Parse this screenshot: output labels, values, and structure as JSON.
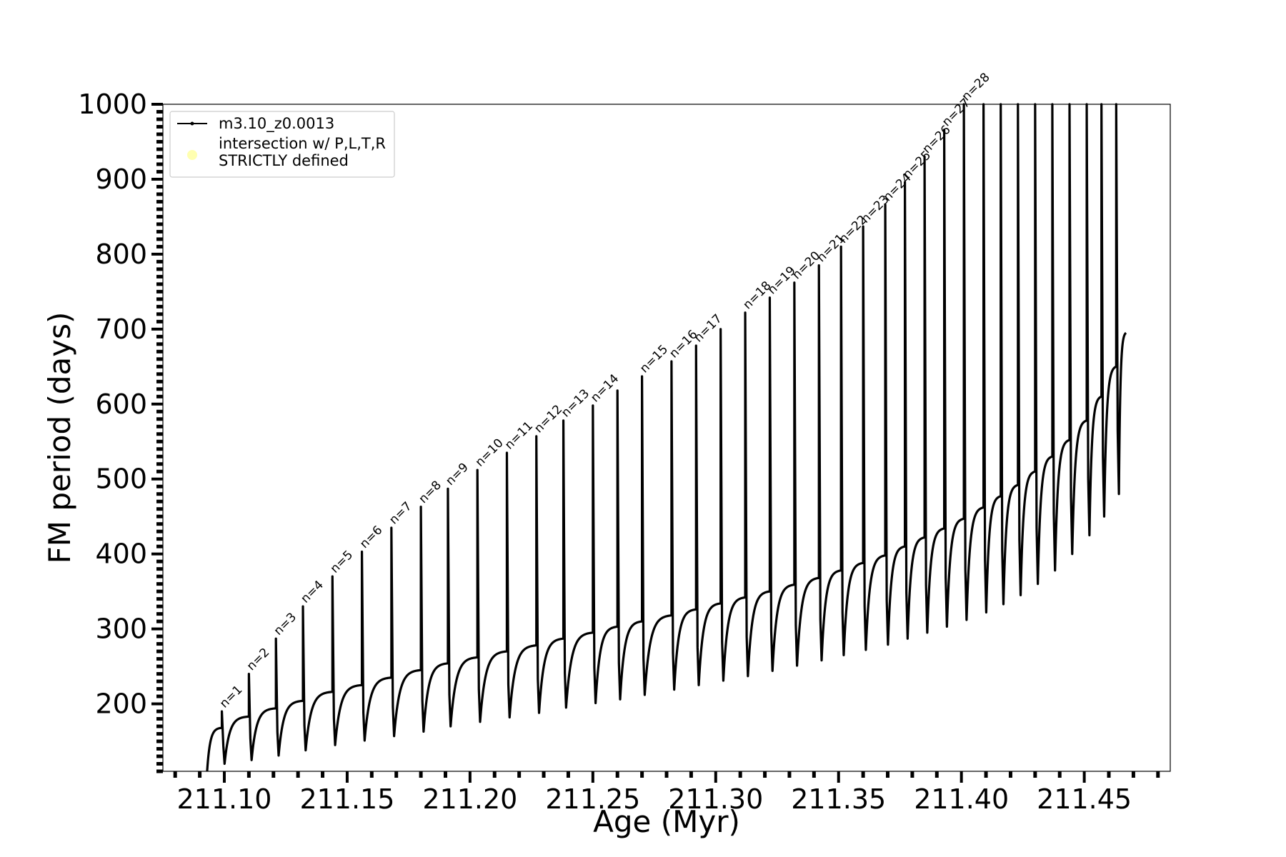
{
  "chart_data": {
    "type": "line",
    "title": "",
    "xlabel": "Age (Myr)",
    "ylabel": "FM period (days)",
    "xlim": [
      211.075,
      211.485
    ],
    "ylim": [
      110,
      1000
    ],
    "x_ticks": [
      211.1,
      211.15,
      211.2,
      211.25,
      211.3,
      211.35,
      211.4,
      211.45
    ],
    "x_tick_labels": [
      "211.10",
      "211.15",
      "211.20",
      "211.25",
      "211.30",
      "211.35",
      "211.40",
      "211.45"
    ],
    "y_ticks": [
      200,
      300,
      400,
      500,
      600,
      700,
      800,
      900,
      1000
    ],
    "y_tick_labels": [
      "200",
      "300",
      "400",
      "500",
      "600",
      "700",
      "800",
      "900",
      "1000"
    ],
    "grid": false,
    "legend": {
      "placement": "top-left",
      "entries": [
        {
          "label": "m3.10_z0.0013",
          "marker": "line-with-dots",
          "color": "#000000"
        },
        {
          "label": "intersection w/ P,L,T,R STRICTLY defined",
          "marker": "circle",
          "color": "#ffffb0"
        }
      ]
    },
    "series": [
      {
        "name": "m3.10_z0.0013",
        "start": {
          "x": 211.093,
          "y": 110
        },
        "end": {
          "x": 211.467,
          "y": 695
        },
        "pulses": [
          {
            "label": "n=1",
            "x": 211.099,
            "peak": 190,
            "trough": 120,
            "pre": 168
          },
          {
            "label": "n=2",
            "x": 211.11,
            "peak": 240,
            "trough": 125,
            "pre": 183
          },
          {
            "label": "n=3",
            "x": 211.121,
            "peak": 287,
            "trough": 131,
            "pre": 194
          },
          {
            "label": "n=4",
            "x": 211.132,
            "peak": 330,
            "trough": 138,
            "pre": 204
          },
          {
            "label": "n=5",
            "x": 211.144,
            "peak": 370,
            "trough": 145,
            "pre": 216
          },
          {
            "label": "n=6",
            "x": 211.156,
            "peak": 403,
            "trough": 151,
            "pre": 225
          },
          {
            "label": "n=7",
            "x": 211.168,
            "peak": 435,
            "trough": 157,
            "pre": 235
          },
          {
            "label": "n=8",
            "x": 211.18,
            "peak": 463,
            "trough": 163,
            "pre": 245
          },
          {
            "label": "n=9",
            "x": 211.191,
            "peak": 487,
            "trough": 170,
            "pre": 254
          },
          {
            "label": "n=10",
            "x": 211.203,
            "peak": 512,
            "trough": 176,
            "pre": 262
          },
          {
            "label": "n=11",
            "x": 211.215,
            "peak": 535,
            "trough": 182,
            "pre": 270
          },
          {
            "label": "n=12",
            "x": 211.227,
            "peak": 557,
            "trough": 188,
            "pre": 278
          },
          {
            "label": "n=13",
            "x": 211.238,
            "peak": 578,
            "trough": 195,
            "pre": 287
          },
          {
            "label": "n=14",
            "x": 211.25,
            "peak": 598,
            "trough": 201,
            "pre": 295
          },
          {
            "label": "",
            "x": 211.26,
            "peak": 618,
            "trough": 206,
            "pre": 303
          },
          {
            "label": "n=15",
            "x": 211.27,
            "peak": 637,
            "trough": 212,
            "pre": 310
          },
          {
            "label": "n=16",
            "x": 211.282,
            "peak": 657,
            "trough": 219,
            "pre": 318
          },
          {
            "label": "n=17",
            "x": 211.292,
            "peak": 678,
            "trough": 225,
            "pre": 326
          },
          {
            "label": "",
            "x": 211.302,
            "peak": 700,
            "trough": 231,
            "pre": 334
          },
          {
            "label": "n=18",
            "x": 211.312,
            "peak": 722,
            "trough": 237,
            "pre": 342
          },
          {
            "label": "n=19",
            "x": 211.322,
            "peak": 742,
            "trough": 244,
            "pre": 350
          },
          {
            "label": "n=20",
            "x": 211.332,
            "peak": 762,
            "trough": 251,
            "pre": 359
          },
          {
            "label": "n=21",
            "x": 211.342,
            "peak": 785,
            "trough": 258,
            "pre": 368
          },
          {
            "label": "n=22",
            "x": 211.351,
            "peak": 810,
            "trough": 265,
            "pre": 378
          },
          {
            "label": "n=23",
            "x": 211.36,
            "peak": 837,
            "trough": 272,
            "pre": 388
          },
          {
            "label": "n=24",
            "x": 211.369,
            "peak": 866,
            "trough": 279,
            "pre": 398
          },
          {
            "label": "n=25",
            "x": 211.377,
            "peak": 896,
            "trough": 287,
            "pre": 410
          },
          {
            "label": "n=26",
            "x": 211.385,
            "peak": 930,
            "trough": 295,
            "pre": 422
          },
          {
            "label": "n=27",
            "x": 211.393,
            "peak": 966,
            "trough": 303,
            "pre": 434
          },
          {
            "label": "n=28",
            "x": 211.401,
            "peak": 1000,
            "trough": 312,
            "pre": 447
          },
          {
            "label": "",
            "x": 211.409,
            "peak": 1000,
            "trough": 322,
            "pre": 462
          },
          {
            "label": "",
            "x": 211.416,
            "peak": 1000,
            "trough": 333,
            "pre": 477
          },
          {
            "label": "",
            "x": 211.423,
            "peak": 1000,
            "trough": 345,
            "pre": 492
          },
          {
            "label": "",
            "x": 211.43,
            "peak": 1000,
            "trough": 360,
            "pre": 510
          },
          {
            "label": "",
            "x": 211.437,
            "peak": 1000,
            "trough": 378,
            "pre": 530
          },
          {
            "label": "",
            "x": 211.444,
            "peak": 1000,
            "trough": 400,
            "pre": 552
          },
          {
            "label": "",
            "x": 211.451,
            "peak": 1000,
            "trough": 425,
            "pre": 578
          },
          {
            "label": "",
            "x": 211.457,
            "peak": 1000,
            "trough": 450,
            "pre": 610
          },
          {
            "label": "",
            "x": 211.463,
            "peak": 1000,
            "trough": 480,
            "pre": 650
          }
        ]
      }
    ]
  }
}
